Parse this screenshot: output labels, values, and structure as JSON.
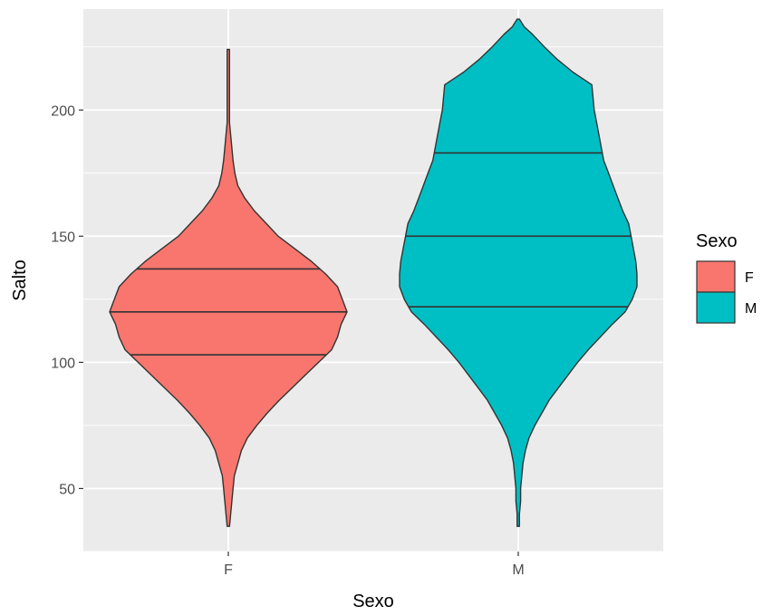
{
  "chart_data": {
    "type": "violin",
    "xlabel": "Sexo",
    "ylabel": "Salto",
    "ylim": [
      25,
      240
    ],
    "yticks": [
      50,
      100,
      150,
      200
    ],
    "categories": [
      "F",
      "M"
    ],
    "legend": {
      "title": "Sexo",
      "position": "right",
      "entries": [
        {
          "label": "F",
          "color": "#F8766D"
        },
        {
          "label": "M",
          "color": "#00BFC4"
        }
      ]
    },
    "grid": true,
    "series": [
      {
        "name": "F",
        "color": "#F8766D",
        "quantiles": {
          "q25": 103,
          "q50": 120,
          "q75": 137
        },
        "min": 35,
        "max": 224,
        "profile": [
          [
            35,
            0.01
          ],
          [
            40,
            0.02
          ],
          [
            45,
            0.03
          ],
          [
            50,
            0.04
          ],
          [
            55,
            0.05
          ],
          [
            60,
            0.08
          ],
          [
            65,
            0.11
          ],
          [
            70,
            0.16
          ],
          [
            75,
            0.24
          ],
          [
            80,
            0.33
          ],
          [
            85,
            0.43
          ],
          [
            90,
            0.54
          ],
          [
            95,
            0.65
          ],
          [
            100,
            0.76
          ],
          [
            105,
            0.87
          ],
          [
            110,
            0.92
          ],
          [
            115,
            0.95
          ],
          [
            120,
            1.0
          ],
          [
            125,
            0.96
          ],
          [
            130,
            0.92
          ],
          [
            135,
            0.82
          ],
          [
            140,
            0.7
          ],
          [
            145,
            0.56
          ],
          [
            150,
            0.42
          ],
          [
            155,
            0.32
          ],
          [
            160,
            0.22
          ],
          [
            165,
            0.14
          ],
          [
            170,
            0.08
          ],
          [
            175,
            0.055
          ],
          [
            180,
            0.04
          ],
          [
            185,
            0.03
          ],
          [
            190,
            0.02
          ],
          [
            195,
            0.01
          ],
          [
            200,
            0.01
          ],
          [
            205,
            0.01
          ],
          [
            210,
            0.01
          ],
          [
            215,
            0.01
          ],
          [
            220,
            0.01
          ],
          [
            224,
            0.01
          ]
        ]
      },
      {
        "name": "M",
        "color": "#00BFC4",
        "quantiles": {
          "q25": 122,
          "q50": 150,
          "q75": 183
        },
        "min": 35,
        "max": 236,
        "profile": [
          [
            35,
            0.01
          ],
          [
            40,
            0.01
          ],
          [
            45,
            0.02
          ],
          [
            50,
            0.02
          ],
          [
            55,
            0.03
          ],
          [
            60,
            0.04
          ],
          [
            65,
            0.06
          ],
          [
            70,
            0.09
          ],
          [
            75,
            0.14
          ],
          [
            80,
            0.2
          ],
          [
            85,
            0.26
          ],
          [
            90,
            0.34
          ],
          [
            95,
            0.42
          ],
          [
            100,
            0.5
          ],
          [
            105,
            0.59
          ],
          [
            110,
            0.69
          ],
          [
            115,
            0.79
          ],
          [
            120,
            0.9
          ],
          [
            125,
            0.96
          ],
          [
            130,
            1.0
          ],
          [
            135,
            1.0
          ],
          [
            140,
            0.99
          ],
          [
            145,
            0.97
          ],
          [
            150,
            0.95
          ],
          [
            155,
            0.93
          ],
          [
            160,
            0.88
          ],
          [
            165,
            0.84
          ],
          [
            170,
            0.8
          ],
          [
            175,
            0.76
          ],
          [
            180,
            0.72
          ],
          [
            185,
            0.7
          ],
          [
            190,
            0.68
          ],
          [
            195,
            0.66
          ],
          [
            200,
            0.64
          ],
          [
            205,
            0.63
          ],
          [
            210,
            0.62
          ],
          [
            215,
            0.46
          ],
          [
            220,
            0.33
          ],
          [
            225,
            0.22
          ],
          [
            230,
            0.12
          ],
          [
            233,
            0.05
          ],
          [
            236,
            0.01
          ]
        ]
      }
    ]
  }
}
